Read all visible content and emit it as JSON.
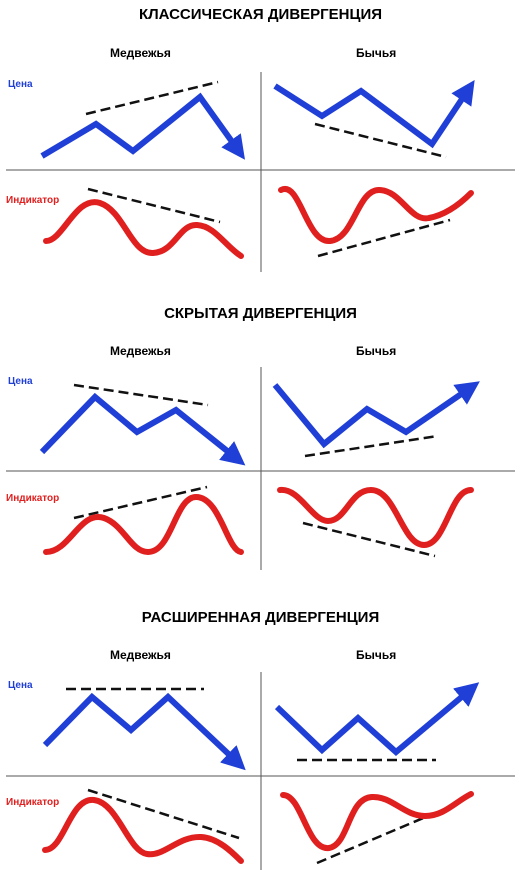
{
  "sections": [
    {
      "title": "КЛАССИЧЕСКАЯ ДИВЕРГЕНЦИЯ",
      "bearish_label": "Медвежья",
      "bullish_label": "Бычья",
      "price_label": "Цена",
      "indicator_label": "Индикатор"
    },
    {
      "title": "СКРЫТАЯ ДИВЕРГЕНЦИЯ",
      "bearish_label": "Медвежья",
      "bullish_label": "Бычья",
      "price_label": "Цена",
      "indicator_label": "Индикатор"
    },
    {
      "title": "РАСШИРЕННАЯ ДИВЕРГЕНЦИЯ",
      "bearish_label": "Медвежья",
      "bullish_label": "Бычья",
      "price_label": "Цена",
      "indicator_label": "Индикатор"
    }
  ],
  "colors": {
    "price": "#1f3fd6",
    "indicator": "#e01f1f",
    "trendline": "#111111",
    "divider": "#555555"
  }
}
